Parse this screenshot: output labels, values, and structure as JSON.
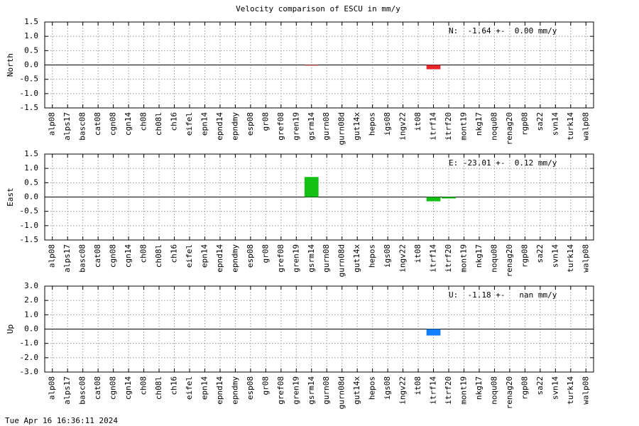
{
  "title": "Velocity comparison of ESCU in mm/y",
  "footer": "Tue Apr 16 16:36:11 2024",
  "chart_data": [
    {
      "type": "bar",
      "ylabel": "North",
      "annotation": "N:  -1.64 +-  0.00 mm/y",
      "color": "#e8262a",
      "categories": [
        "alp08",
        "alps17",
        "basc08",
        "cat08",
        "cgn08",
        "cgn14",
        "ch08",
        "ch08l",
        "ch16",
        "eifel",
        "epn14",
        "epnd14",
        "epndmy",
        "esp08",
        "gr08",
        "gref08",
        "gren19",
        "gsrm14",
        "gurn08",
        "gurn08d",
        "gut14x",
        "hepos",
        "igs08",
        "ingv22",
        "it08",
        "itrf14",
        "itrf20",
        "mont19",
        "nkg17",
        "noqu08",
        "renag20",
        "rgp08",
        "sa22",
        "svn14",
        "turk14",
        "walp08"
      ],
      "values": [
        0,
        0,
        0,
        0,
        0,
        0,
        0,
        0,
        0,
        0,
        0,
        0,
        0,
        0,
        0,
        0,
        0,
        -0.02,
        0,
        0,
        0,
        0,
        0,
        0,
        0,
        -0.15,
        0,
        0,
        0,
        0,
        0,
        0,
        0,
        0,
        0,
        0
      ],
      "ylim": [
        -1.5,
        1.5
      ],
      "yticks": [
        {
          "value": -1.5,
          "label": "-1.5"
        },
        {
          "value": -1,
          "label": "-1.0"
        },
        {
          "value": -0.5,
          "label": "-0.5"
        },
        {
          "value": 0,
          "label": "0.0"
        },
        {
          "value": 0.5,
          "label": "0.5"
        },
        {
          "value": 1,
          "label": "1.0"
        },
        {
          "value": 1.5,
          "label": "1.5"
        }
      ],
      "grid": true
    },
    {
      "type": "bar",
      "ylabel": "East",
      "annotation": "E: -23.01 +-  0.12 mm/y",
      "color": "#14c014",
      "categories": [
        "alp08",
        "alps17",
        "basc08",
        "cat08",
        "cgn08",
        "cgn14",
        "ch08",
        "ch08l",
        "ch16",
        "eifel",
        "epn14",
        "epnd14",
        "epndmy",
        "esp08",
        "gr08",
        "gref08",
        "gren19",
        "gsrm14",
        "gurn08",
        "gurn08d",
        "gut14x",
        "hepos",
        "igs08",
        "ingv22",
        "it08",
        "itrf14",
        "itrf20",
        "mont19",
        "nkg17",
        "noqu08",
        "renag20",
        "rgp08",
        "sa22",
        "svn14",
        "turk14",
        "walp08"
      ],
      "values": [
        0,
        0,
        0,
        0,
        0,
        0,
        0,
        0,
        0,
        0,
        0,
        0,
        0,
        0,
        0,
        0,
        0,
        0.7,
        0,
        0,
        0,
        0,
        0,
        0,
        0,
        -0.15,
        -0.05,
        0,
        0,
        0,
        0,
        0,
        0,
        0,
        0,
        0
      ],
      "ylim": [
        -1.5,
        1.5
      ],
      "yticks": [
        {
          "value": -1.5,
          "label": "-1.5"
        },
        {
          "value": -1,
          "label": "-1.0"
        },
        {
          "value": -0.5,
          "label": "-0.5"
        },
        {
          "value": 0,
          "label": "0.0"
        },
        {
          "value": 0.5,
          "label": "0.5"
        },
        {
          "value": 1,
          "label": "1.0"
        },
        {
          "value": 1.5,
          "label": "1.5"
        }
      ],
      "grid": true
    },
    {
      "type": "bar",
      "ylabel": "Up",
      "annotation": "U:  -1.18 +-   nan mm/y",
      "color": "#1480ff",
      "categories": [
        "alp08",
        "alps17",
        "basc08",
        "cat08",
        "cgn08",
        "cgn14",
        "ch08",
        "ch08l",
        "ch16",
        "eifel",
        "epn14",
        "epnd14",
        "epndmy",
        "esp08",
        "gr08",
        "gref08",
        "gren19",
        "gsrm14",
        "gurn08",
        "gurn08d",
        "gut14x",
        "hepos",
        "igs08",
        "ingv22",
        "it08",
        "itrf14",
        "itrf20",
        "mont19",
        "nkg17",
        "noqu08",
        "renag20",
        "rgp08",
        "sa22",
        "svn14",
        "turk14",
        "walp08"
      ],
      "values": [
        0,
        0,
        0,
        0,
        0,
        0,
        0,
        0,
        0,
        0,
        0,
        0,
        0,
        0,
        0,
        0,
        0,
        0,
        0,
        0,
        0,
        0,
        0,
        0,
        0,
        -0.45,
        0,
        0,
        0,
        0,
        0,
        0,
        0,
        0,
        0,
        0
      ],
      "ylim": [
        -3,
        3
      ],
      "yticks": [
        {
          "value": -3,
          "label": "-3.0"
        },
        {
          "value": -2,
          "label": "-2.0"
        },
        {
          "value": -1,
          "label": "-1.0"
        },
        {
          "value": 0,
          "label": "0.0"
        },
        {
          "value": 1,
          "label": "1.0"
        },
        {
          "value": 2,
          "label": "2.0"
        },
        {
          "value": 3,
          "label": "3.0"
        }
      ],
      "grid": true
    }
  ]
}
